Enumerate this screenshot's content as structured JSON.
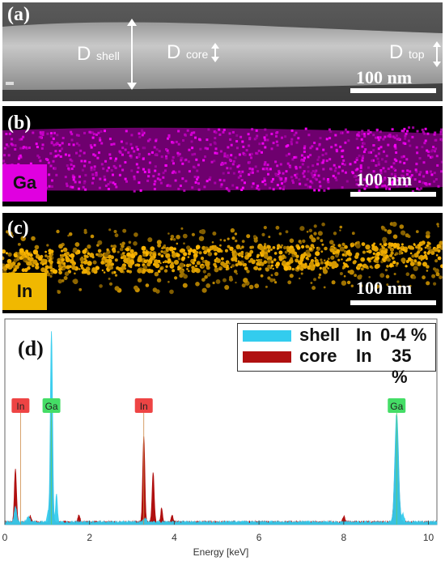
{
  "panel_a": {
    "label": "(a)",
    "d_shell": "D",
    "d_shell_sub": "shell",
    "d_core": "D",
    "d_core_sub": "core",
    "d_top": "D",
    "d_top_sub": "top",
    "scale": "100 nm"
  },
  "panel_b": {
    "label": "(b)",
    "element": "Ga",
    "element_color": "#e000e0",
    "scale": "100 nm"
  },
  "panel_c": {
    "label": "(c)",
    "element": "In",
    "element_color": "#f0b800",
    "scale": "100 nm"
  },
  "panel_d": {
    "label": "(d)",
    "legend": [
      {
        "name": "shell",
        "elem": "In",
        "value": "0-4 %",
        "color": "#33ccee"
      },
      {
        "name": "core",
        "elem": "In",
        "value": "35 %",
        "color": "#b01010"
      }
    ],
    "peak_labels": [
      {
        "text": "In",
        "energy": 0.37,
        "color": "#ee4444"
      },
      {
        "text": "Ga",
        "energy": 1.1,
        "color": "#44dd66"
      },
      {
        "text": "In",
        "energy": 3.28,
        "color": "#ee4444"
      },
      {
        "text": "Ga",
        "energy": 9.25,
        "color": "#44dd66"
      }
    ]
  },
  "chart_data": {
    "type": "area",
    "title": "",
    "xlabel": "Energy [keV]",
    "ylabel": "",
    "xlim": [
      0,
      10.2
    ],
    "ylim": [
      0,
      1
    ],
    "x_ticks": [
      "0",
      "2",
      "4",
      "6",
      "8",
      "10"
    ],
    "series": [
      {
        "name": "shell In 0-4 %",
        "peaks": [
          {
            "x": 0.25,
            "y": 0.08,
            "w": 0.04
          },
          {
            "x": 0.55,
            "y": 0.03,
            "w": 0.05
          },
          {
            "x": 1.02,
            "y": 0.05,
            "w": 0.03
          },
          {
            "x": 1.1,
            "y": 0.97,
            "w": 0.035
          },
          {
            "x": 1.22,
            "y": 0.14,
            "w": 0.03
          },
          {
            "x": 3.3,
            "y": 0.02,
            "w": 0.05
          },
          {
            "x": 9.25,
            "y": 0.55,
            "w": 0.06
          },
          {
            "x": 9.4,
            "y": 0.04,
            "w": 0.04
          }
        ]
      },
      {
        "name": "core In 35 %",
        "peaks": [
          {
            "x": 0.25,
            "y": 0.27,
            "w": 0.035
          },
          {
            "x": 0.6,
            "y": 0.03,
            "w": 0.05
          },
          {
            "x": 1.1,
            "y": 0.55,
            "w": 0.035
          },
          {
            "x": 1.75,
            "y": 0.04,
            "w": 0.03
          },
          {
            "x": 3.28,
            "y": 0.43,
            "w": 0.035
          },
          {
            "x": 3.5,
            "y": 0.25,
            "w": 0.035
          },
          {
            "x": 3.7,
            "y": 0.07,
            "w": 0.03
          },
          {
            "x": 3.95,
            "y": 0.04,
            "w": 0.03
          },
          {
            "x": 8.0,
            "y": 0.03,
            "w": 0.04
          },
          {
            "x": 9.25,
            "y": 0.48,
            "w": 0.06
          }
        ]
      }
    ],
    "grid": false,
    "legend_position": "top-right"
  }
}
